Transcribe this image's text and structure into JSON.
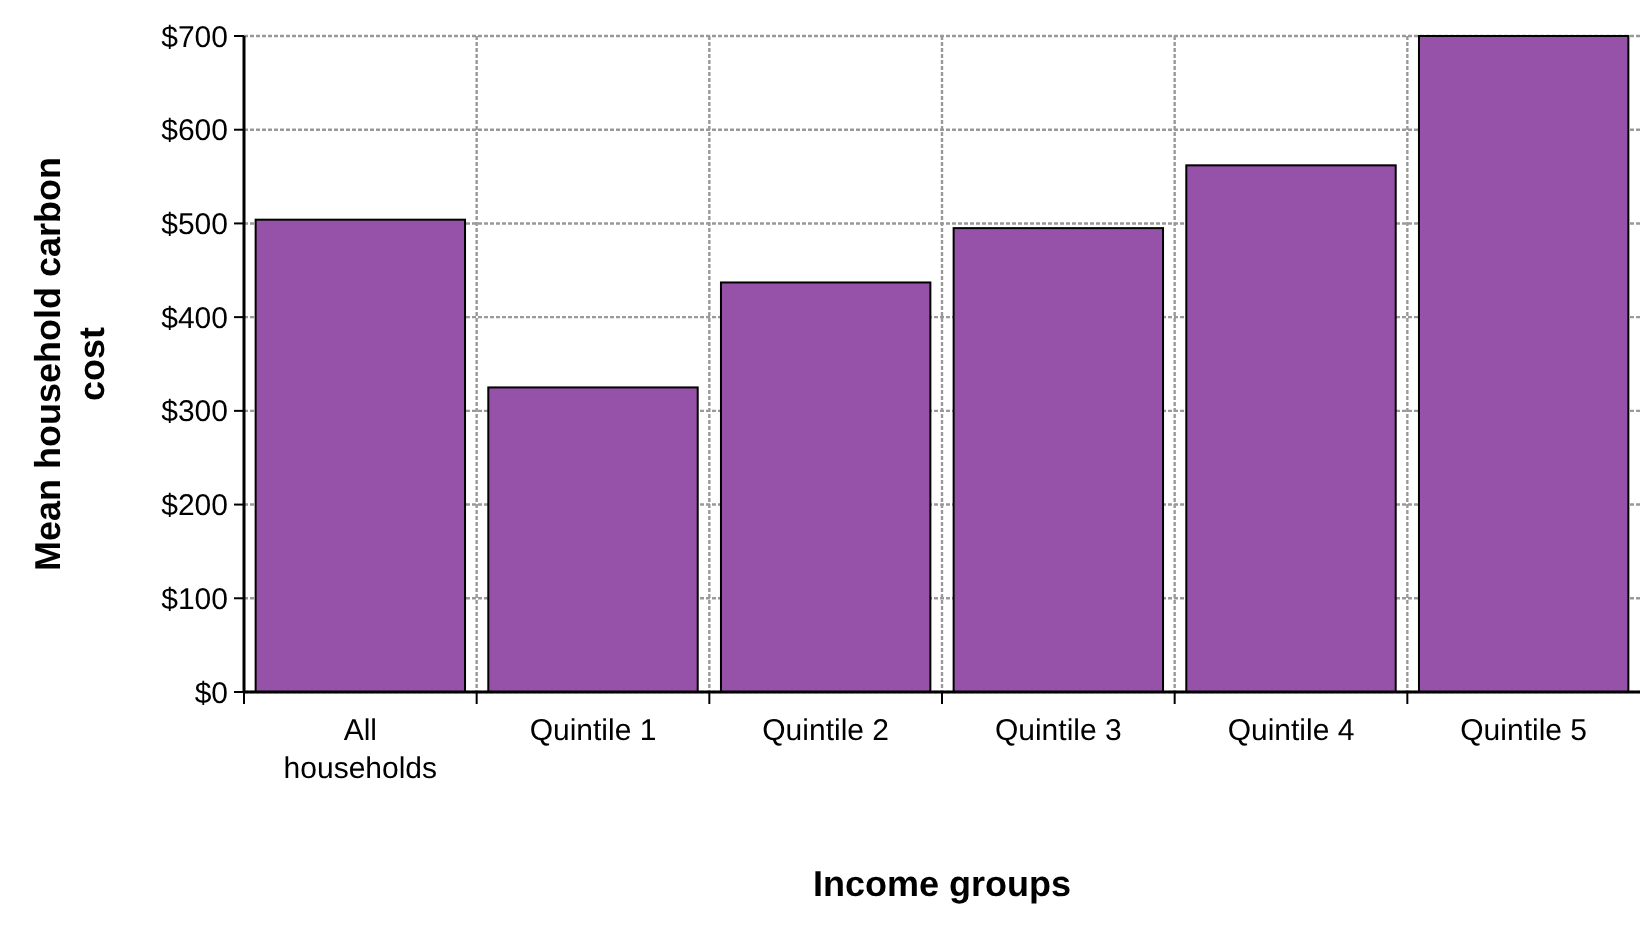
{
  "chart_data": {
    "type": "bar",
    "xlabel": "Income groups",
    "ylabel": "Mean household carbon cost",
    "categories": [
      "All households",
      "Quintile 1",
      "Quintile 2",
      "Quintile 3",
      "Quintile 4",
      "Quintile 5"
    ],
    "values": [
      504,
      325,
      437,
      495,
      562,
      700
    ],
    "color": "#9652a8",
    "ylim": [
      0,
      700
    ],
    "yticks": [
      {
        "value": 0,
        "label": "$0"
      },
      {
        "value": 100,
        "label": "$100"
      },
      {
        "value": 200,
        "label": "$200"
      },
      {
        "value": 300,
        "label": "$300"
      },
      {
        "value": 400,
        "label": "$400"
      },
      {
        "value": 500,
        "label": "$500"
      },
      {
        "value": 600,
        "label": "$600"
      },
      {
        "value": 700,
        "label": "$700"
      }
    ],
    "grid": true
  }
}
